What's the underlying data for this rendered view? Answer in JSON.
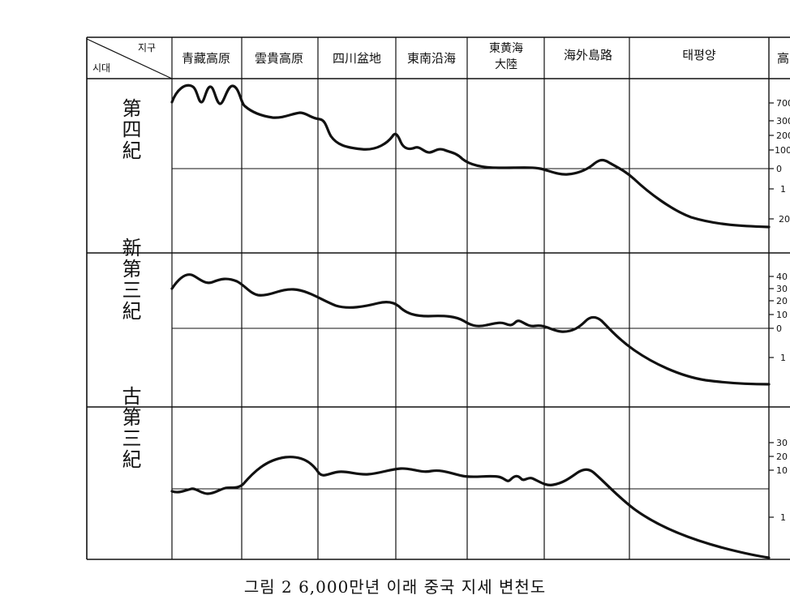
{
  "corner": {
    "region_label": "지구",
    "era_label": "시대"
  },
  "regions": [
    {
      "lines": [
        "青藏高原"
      ]
    },
    {
      "lines": [
        "雲貴高原"
      ]
    },
    {
      "lines": [
        "四川盆地"
      ]
    },
    {
      "lines": [
        "東南沿海"
      ]
    },
    {
      "lines": [
        "東黄海",
        "大陸"
      ]
    },
    {
      "lines": [
        "海外島路"
      ]
    },
    {
      "lines": [
        "태평양"
      ]
    },
    {
      "lines": [
        "高"
      ]
    }
  ],
  "eras": [
    {
      "label": "第四紀",
      "ticks": [
        "700",
        "300",
        "200",
        "100",
        "0",
        "1",
        "20"
      ]
    },
    {
      "label": "新第三紀",
      "ticks": [
        "40",
        "30",
        "20",
        "10",
        "0",
        "1"
      ]
    },
    {
      "label": "古第三紀",
      "ticks": [
        "30",
        "20",
        "10",
        "1"
      ]
    }
  ],
  "caption": "그림 2  6,000만년 이래 중국 지세 변천도"
}
